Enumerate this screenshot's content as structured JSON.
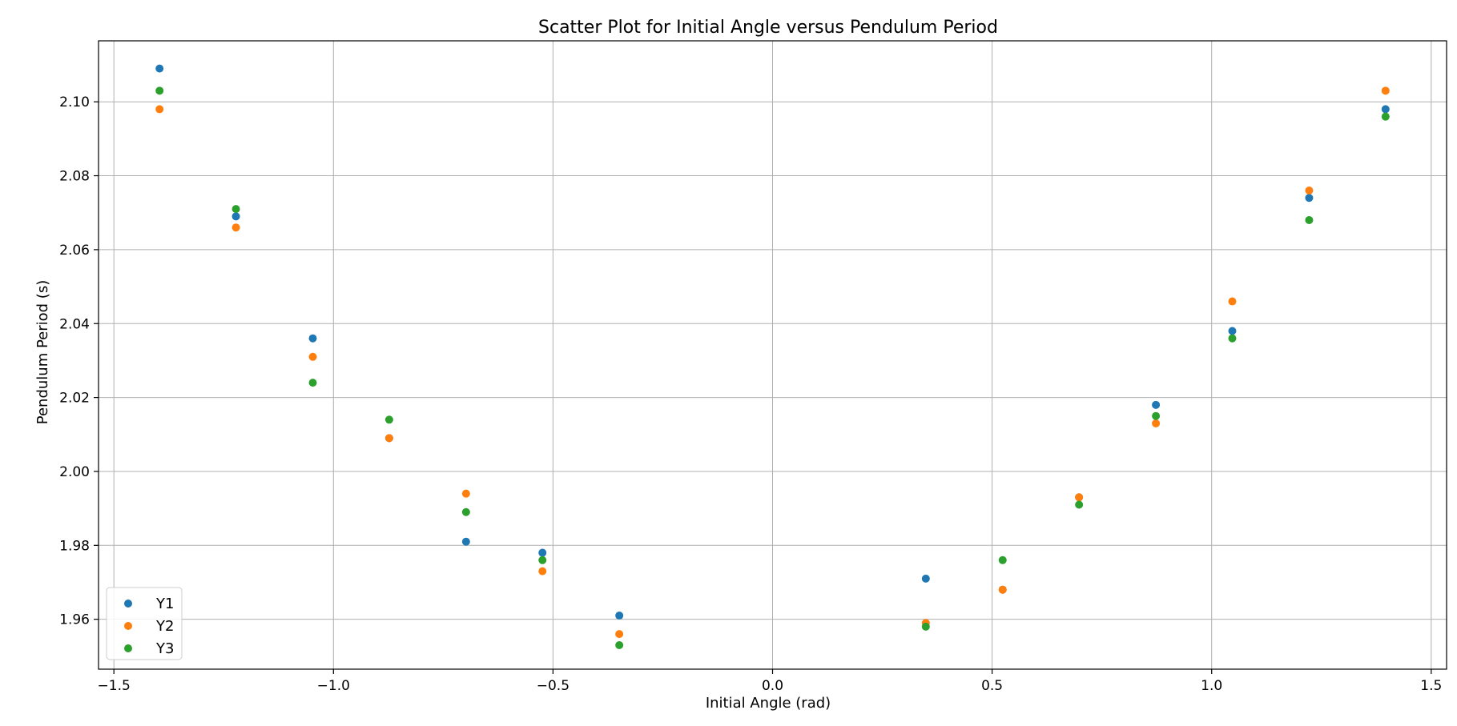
{
  "chart_data": {
    "type": "scatter",
    "title": "Scatter Plot for Initial Angle versus Pendulum Period",
    "xlabel": "Initial Angle (rad)",
    "ylabel": "Pendulum Period (s)",
    "xlim": [
      -1.535,
      1.535
    ],
    "ylim": [
      1.9465,
      2.1165
    ],
    "x_ticks": [
      -1.5,
      -1.0,
      -0.5,
      0.0,
      0.5,
      1.0,
      1.5
    ],
    "x_tick_labels": [
      "−1.5",
      "−1.0",
      "−0.5",
      "0.0",
      "0.5",
      "1.0",
      "1.5"
    ],
    "y_ticks": [
      1.96,
      1.98,
      2.0,
      2.02,
      2.04,
      2.06,
      2.08,
      2.1
    ],
    "y_tick_labels": [
      "1.96",
      "1.98",
      "2.00",
      "2.02",
      "2.04",
      "2.06",
      "2.08",
      "2.10"
    ],
    "grid": true,
    "legend_position": "lower-left",
    "x": [
      -1.396,
      -1.222,
      -1.047,
      -0.873,
      -0.698,
      -0.524,
      -0.349,
      0.349,
      0.524,
      0.698,
      0.873,
      1.047,
      1.222,
      1.396
    ],
    "series": [
      {
        "name": "Y1",
        "color": "#1f77b4",
        "values": [
          2.109,
          2.069,
          2.036,
          2.009,
          1.981,
          1.978,
          1.961,
          1.971,
          1.968,
          1.993,
          2.018,
          2.038,
          2.074,
          2.098
        ]
      },
      {
        "name": "Y2",
        "color": "#ff7f0e",
        "values": [
          2.098,
          2.066,
          2.031,
          2.009,
          1.994,
          1.973,
          1.956,
          1.959,
          1.968,
          1.993,
          2.013,
          2.046,
          2.076,
          2.103
        ]
      },
      {
        "name": "Y3",
        "color": "#2ca02c",
        "values": [
          2.103,
          2.071,
          2.024,
          2.014,
          1.989,
          1.976,
          1.953,
          1.958,
          1.976,
          1.991,
          2.015,
          2.036,
          2.068,
          2.096
        ]
      }
    ]
  }
}
